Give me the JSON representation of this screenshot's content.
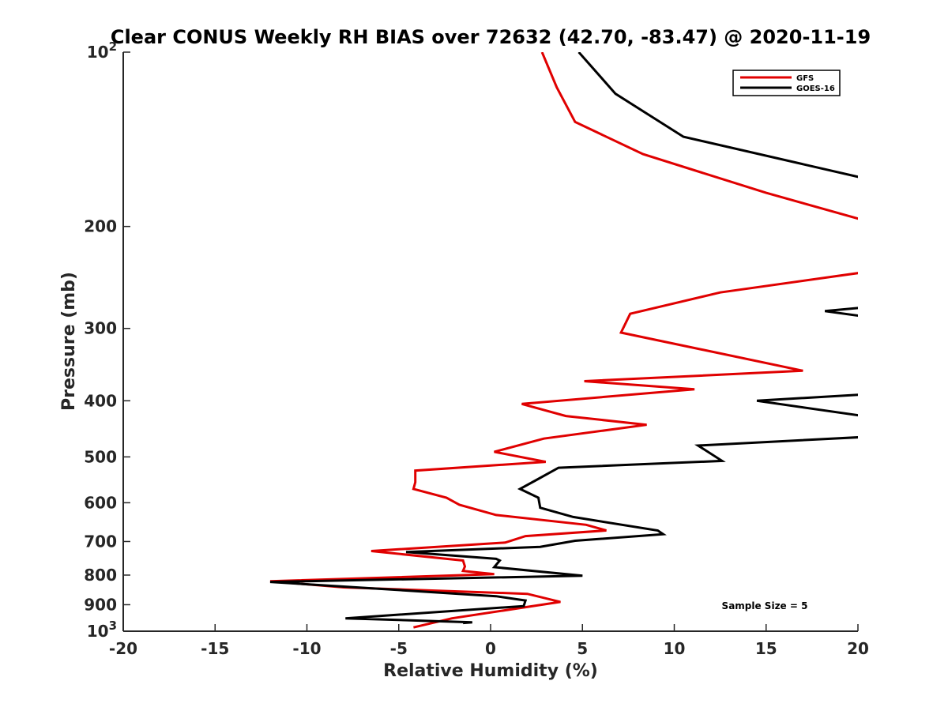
{
  "chart_data": {
    "type": "line",
    "title": "Clear CONUS Weekly RH BIAS over 72632 (42.70, -83.47) @ 2020-11-19",
    "xlabel": "Relative Humidity (%)",
    "ylabel": "Pressure (mb)",
    "xlim": [
      -20,
      20
    ],
    "ylim": [
      100,
      1000
    ],
    "y_scale": "log",
    "y_reversed": true,
    "x_ticks": [
      "-20",
      "-15",
      "-10",
      "-5",
      "0",
      "5",
      "10",
      "15",
      "20"
    ],
    "y_ticks": [
      {
        "value": 100,
        "base": "10",
        "exp": "2"
      },
      {
        "value": 200,
        "label": "200"
      },
      {
        "value": 300,
        "label": "300"
      },
      {
        "value": 400,
        "label": "400"
      },
      {
        "value": 500,
        "label": "500"
      },
      {
        "value": 600,
        "label": "600"
      },
      {
        "value": 700,
        "label": "700"
      },
      {
        "value": 800,
        "label": "800"
      },
      {
        "value": 900,
        "label": "900"
      },
      {
        "value": 1000,
        "base": "10",
        "exp": "3"
      }
    ],
    "grid": false,
    "legend_position": "top-right",
    "annotation": "Sample Size = 5",
    "series": [
      {
        "name": "GFS",
        "color": "#e00000",
        "points": [
          [
            2.8,
            100
          ],
          [
            3.6,
            115
          ],
          [
            4.6,
            132
          ],
          [
            8.3,
            150
          ],
          [
            15.0,
            175
          ],
          [
            20.3,
            195
          ],
          [
            20.3,
            240
          ],
          [
            12.5,
            260
          ],
          [
            7.6,
            283
          ],
          [
            7.1,
            305
          ],
          [
            17.0,
            355
          ],
          [
            5.1,
            370
          ],
          [
            11.1,
            382
          ],
          [
            1.7,
            405
          ],
          [
            4.1,
            425
          ],
          [
            8.5,
            440
          ],
          [
            2.9,
            465
          ],
          [
            0.2,
            490
          ],
          [
            3.0,
            510
          ],
          [
            -4.1,
            528
          ],
          [
            -4.1,
            553
          ],
          [
            -4.2,
            568
          ],
          [
            -2.4,
            588
          ],
          [
            -1.7,
            605
          ],
          [
            0.3,
            630
          ],
          [
            5.2,
            655
          ],
          [
            6.3,
            670
          ],
          [
            1.9,
            685
          ],
          [
            0.8,
            703
          ],
          [
            -6.5,
            727
          ],
          [
            -1.5,
            755
          ],
          [
            -1.4,
            773
          ],
          [
            -1.5,
            787
          ],
          [
            0.2,
            797
          ],
          [
            -12.0,
            820
          ],
          [
            -8.0,
            840
          ],
          [
            2.0,
            862
          ],
          [
            3.8,
            890
          ],
          [
            -2.1,
            950
          ],
          [
            -4.2,
            985
          ]
        ]
      },
      {
        "name": "GOES-16",
        "color": "#000000",
        "points": [
          [
            4.8,
            100
          ],
          [
            6.8,
            118
          ],
          [
            10.5,
            140
          ],
          [
            20.3,
            165
          ],
          [
            20.3,
            276
          ],
          [
            18.2,
            280
          ],
          [
            20.3,
            286
          ],
          [
            20.3,
            390
          ],
          [
            14.5,
            400
          ],
          [
            20.3,
            425
          ],
          [
            20.3,
            462
          ],
          [
            11.3,
            478
          ],
          [
            12.6,
            508
          ],
          [
            3.7,
            522
          ],
          [
            2.5,
            548
          ],
          [
            1.6,
            568
          ],
          [
            2.6,
            588
          ],
          [
            2.7,
            612
          ],
          [
            4.5,
            635
          ],
          [
            9.1,
            670
          ],
          [
            9.4,
            680
          ],
          [
            4.6,
            698
          ],
          [
            2.7,
            715
          ],
          [
            -4.6,
            730
          ],
          [
            0.3,
            750
          ],
          [
            0.5,
            755
          ],
          [
            0.2,
            775
          ],
          [
            5.0,
            802
          ],
          [
            -12.0,
            822
          ],
          [
            0.3,
            870
          ],
          [
            1.9,
            885
          ],
          [
            1.8,
            905
          ],
          [
            -7.9,
            950
          ],
          [
            -1.0,
            965
          ],
          [
            -1.5,
            968
          ]
        ]
      }
    ]
  }
}
